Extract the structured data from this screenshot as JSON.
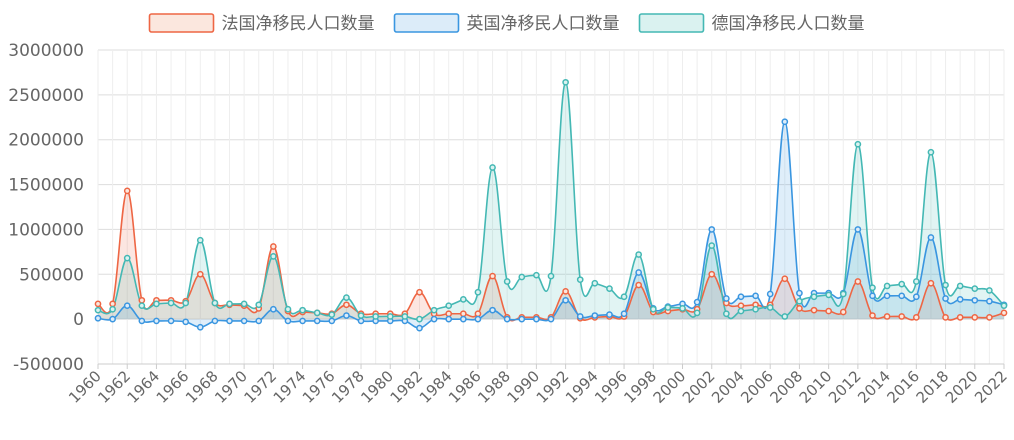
{
  "chart_data": {
    "type": "area",
    "title": "",
    "xlabel": "",
    "ylabel": "",
    "ylim": [
      -500000,
      3000000
    ],
    "yticks": [
      -500000,
      0,
      500000,
      1000000,
      1500000,
      2000000,
      2500000,
      3000000
    ],
    "grid": true,
    "legend_position": "top",
    "x": [
      1960,
      1961,
      1962,
      1963,
      1964,
      1965,
      1966,
      1967,
      1968,
      1969,
      1970,
      1971,
      1972,
      1973,
      1974,
      1975,
      1976,
      1977,
      1978,
      1979,
      1980,
      1981,
      1982,
      1983,
      1984,
      1985,
      1986,
      1987,
      1988,
      1989,
      1990,
      1991,
      1992,
      1993,
      1994,
      1995,
      1996,
      1997,
      1998,
      1999,
      2000,
      2001,
      2002,
      2003,
      2004,
      2005,
      2006,
      2007,
      2008,
      2009,
      2010,
      2011,
      2012,
      2013,
      2014,
      2015,
      2016,
      2017,
      2018,
      2019,
      2020,
      2021,
      2022
    ],
    "xticks": [
      1960,
      1962,
      1964,
      1966,
      1968,
      1970,
      1972,
      1974,
      1976,
      1978,
      1980,
      1982,
      1984,
      1986,
      1988,
      1990,
      1992,
      1994,
      1996,
      1998,
      2000,
      2002,
      2004,
      2006,
      2008,
      2010,
      2012,
      2014,
      2016,
      2018,
      2020,
      2022
    ],
    "series": [
      {
        "name": "法国净移民人口数量",
        "color": "#ee6644",
        "fill": "#fbe7de",
        "values": [
          170000,
          170000,
          1430000,
          210000,
          210000,
          210000,
          200000,
          500000,
          180000,
          160000,
          150000,
          120000,
          810000,
          90000,
          80000,
          70000,
          60000,
          160000,
          60000,
          60000,
          60000,
          60000,
          300000,
          60000,
          60000,
          60000,
          60000,
          480000,
          20000,
          20000,
          20000,
          20000,
          310000,
          10000,
          20000,
          30000,
          30000,
          380000,
          80000,
          90000,
          110000,
          110000,
          500000,
          180000,
          150000,
          160000,
          160000,
          450000,
          120000,
          100000,
          90000,
          80000,
          420000,
          40000,
          30000,
          30000,
          20000,
          400000,
          20000,
          20000,
          20000,
          20000,
          70000
        ]
      },
      {
        "name": "英国净移民人口数量",
        "color": "#3a96e0",
        "fill": "#dcecf9",
        "values": [
          10000,
          0,
          150000,
          -20000,
          -20000,
          -20000,
          -30000,
          -90000,
          -20000,
          -20000,
          -20000,
          -20000,
          110000,
          -20000,
          -20000,
          -20000,
          -20000,
          40000,
          -20000,
          -20000,
          -20000,
          -20000,
          -100000,
          0,
          0,
          0,
          0,
          100000,
          0,
          0,
          0,
          0,
          210000,
          30000,
          40000,
          50000,
          60000,
          520000,
          120000,
          140000,
          170000,
          190000,
          1000000,
          230000,
          250000,
          260000,
          280000,
          2200000,
          290000,
          290000,
          290000,
          290000,
          1000000,
          260000,
          260000,
          260000,
          250000,
          910000,
          230000,
          220000,
          210000,
          200000,
          160000
        ]
      },
      {
        "name": "德国净移民人口数量",
        "color": "#44b8b4",
        "fill": "#daf2f0",
        "values": [
          100000,
          110000,
          680000,
          150000,
          170000,
          180000,
          180000,
          880000,
          180000,
          170000,
          170000,
          160000,
          700000,
          110000,
          100000,
          70000,
          50000,
          240000,
          40000,
          30000,
          30000,
          30000,
          0,
          100000,
          150000,
          220000,
          300000,
          1690000,
          420000,
          470000,
          490000,
          480000,
          2640000,
          440000,
          400000,
          340000,
          250000,
          720000,
          110000,
          130000,
          120000,
          70000,
          820000,
          60000,
          90000,
          110000,
          130000,
          30000,
          200000,
          250000,
          270000,
          280000,
          1950000,
          350000,
          370000,
          390000,
          420000,
          1860000,
          380000,
          370000,
          340000,
          320000,
          150000
        ]
      }
    ]
  }
}
